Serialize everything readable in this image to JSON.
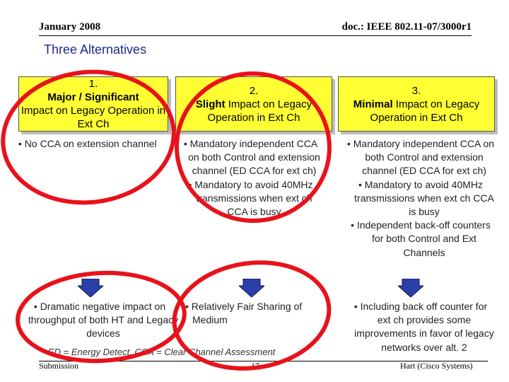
{
  "header": {
    "date": "January 2008",
    "doc": "doc.: IEEE 802.11-07/3000r1"
  },
  "title": "Three Alternatives",
  "alternatives": [
    {
      "number": "1.",
      "name": "Major / Significant",
      "rest": "Impact on Legacy Operation in Ext Ch",
      "details": [
        "No CCA on extension channel"
      ],
      "result": "Dramatic negative impact on throughput of both HT and Legacy devices"
    },
    {
      "number": "2.",
      "name": "Slight",
      "rest": "Impact on Legacy Operation in Ext Ch",
      "details": [
        "Mandatory independent CCA on both Control and extension channel (ED CCA for ext ch)",
        "Mandatory to avoid 40MHz transmissions when ext ch CCA is busy"
      ],
      "result": "Relatively Fair Sharing of Medium"
    },
    {
      "number": "3.",
      "name": "Minimal",
      "rest": "Impact on Legacy Operation in Ext Ch",
      "details": [
        "Mandatory independent CCA on both Control and extension channel (ED CCA for ext ch)",
        "Mandatory to avoid 40MHz transmissions when ext ch CCA is busy",
        "Independent back-off counters for both Control and Ext Channels"
      ],
      "result": "Including back off counter for ext ch provides some improvements in favor of legacy networks over alt. 2"
    }
  ],
  "note": "ED = Energy Detect, CCA = Clear Channel Assessment",
  "footer": {
    "left": "Submission",
    "page": "17",
    "right": "Hart (Cisco Systems)"
  },
  "colors": {
    "box_fill": "#ffff33",
    "title": "#1f2a8f",
    "circle": "#e8121b",
    "arrow": "#2a3fa8"
  }
}
